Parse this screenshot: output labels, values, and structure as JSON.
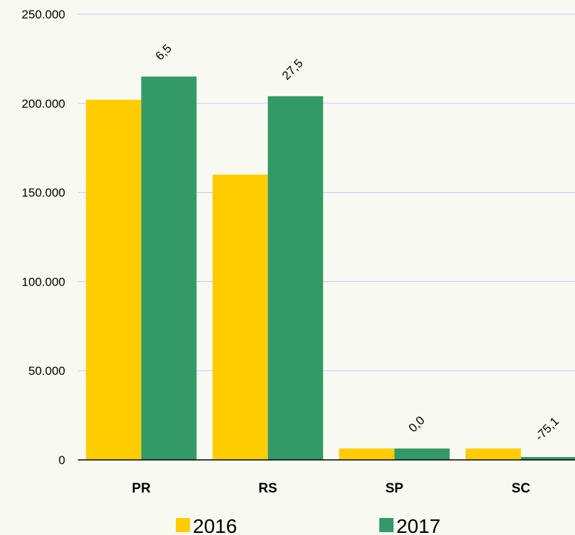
{
  "chart_data": {
    "type": "bar",
    "categories": [
      "PR",
      "RS",
      "SP",
      "SC"
    ],
    "series": [
      {
        "name": "2016",
        "color": "#ffcc00",
        "values": [
          202000,
          160000,
          6400,
          6400
        ]
      },
      {
        "name": "2017",
        "color": "#339966",
        "values": [
          215000,
          204000,
          6400,
          1600
        ]
      }
    ],
    "change_labels": [
      "6,5",
      "27,5",
      "0,0",
      "-75,1"
    ],
    "ylim": [
      0,
      250000
    ],
    "yticks": [
      0,
      {
        "value": 50000,
        "label": "50.000"
      },
      {
        "value": 100000,
        "label": "100.000"
      },
      {
        "value": 150000,
        "label": "150.000"
      },
      {
        "value": 200000,
        "label": "200.000"
      },
      {
        "value": 250000,
        "label": "250.000"
      }
    ],
    "grid": true
  }
}
